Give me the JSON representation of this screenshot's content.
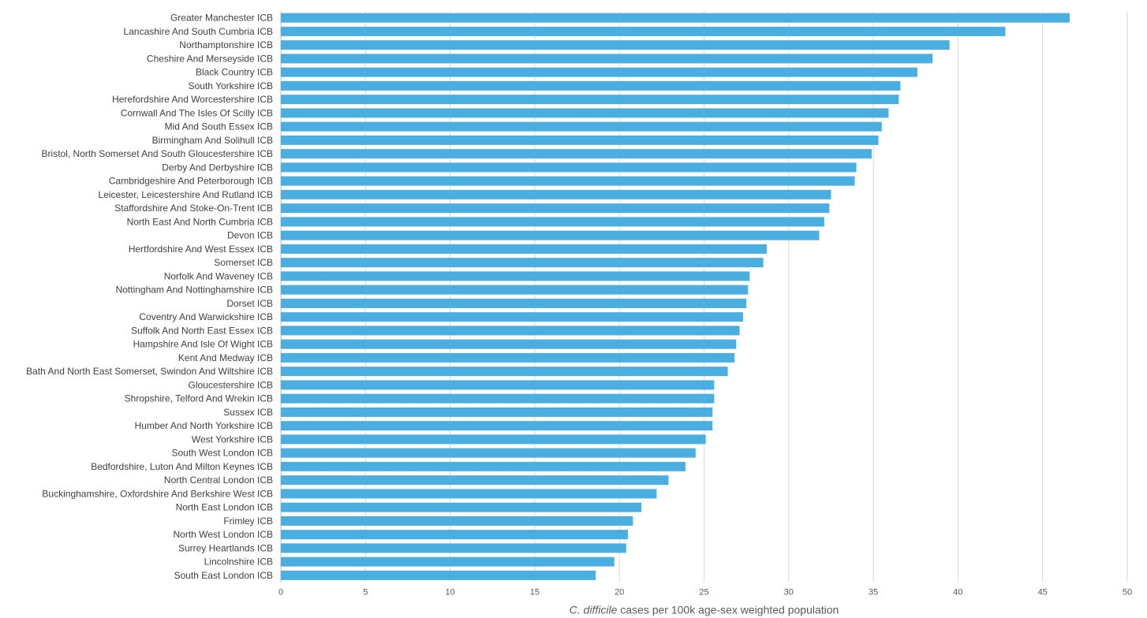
{
  "chart_data": {
    "type": "bar",
    "orientation": "horizontal",
    "title": "",
    "xlabel_italic": "C. difficile",
    "xlabel_rest": " cases per 100k age-sex weighted population",
    "ylabel": "",
    "xlim": [
      0,
      50
    ],
    "xticks": [
      0,
      5,
      10,
      15,
      20,
      25,
      30,
      35,
      40,
      45,
      50
    ],
    "grid": true,
    "legend": "none",
    "bar_color": "#4baee0",
    "categories": [
      "Greater Manchester ICB",
      "Lancashire And South Cumbria ICB",
      "Northamptonshire ICB",
      "Cheshire And Merseyside ICB",
      "Black Country ICB",
      "South Yorkshire ICB",
      "Herefordshire And Worcestershire ICB",
      "Cornwall And The Isles Of Scilly ICB",
      "Mid And South Essex ICB",
      "Birmingham And Solihull ICB",
      "Bristol, North Somerset And South Gloucestershire ICB",
      "Derby And Derbyshire ICB",
      "Cambridgeshire And Peterborough ICB",
      "Leicester, Leicestershire And Rutland ICB",
      "Staffordshire And Stoke-On-Trent ICB",
      "North East And North Cumbria ICB",
      "Devon ICB",
      "Hertfordshire And West Essex ICB",
      "Somerset ICB",
      "Norfolk And Waveney ICB",
      "Nottingham And Nottinghamshire ICB",
      "Dorset ICB",
      "Coventry And Warwickshire ICB",
      "Suffolk And North East Essex ICB",
      "Hampshire And Isle Of Wight ICB",
      "Kent And Medway ICB",
      "Bath And North East Somerset, Swindon And Wiltshire ICB",
      "Gloucestershire ICB",
      "Shropshire, Telford And Wrekin ICB",
      "Sussex ICB",
      "Humber And North Yorkshire ICB",
      "West Yorkshire ICB",
      "South West London ICB",
      "Bedfordshire, Luton And Milton Keynes ICB",
      "North Central London ICB",
      "Buckinghamshire, Oxfordshire And Berkshire West ICB",
      "North East London ICB",
      "Frimley ICB",
      "North West London ICB",
      "Surrey Heartlands ICB",
      "Lincolnshire ICB",
      "South East London ICB"
    ],
    "values": [
      46.6,
      42.8,
      39.5,
      38.5,
      37.6,
      36.6,
      36.5,
      35.9,
      35.5,
      35.3,
      34.9,
      34.0,
      33.9,
      32.5,
      32.4,
      32.1,
      31.8,
      28.7,
      28.5,
      27.7,
      27.6,
      27.5,
      27.3,
      27.1,
      26.9,
      26.8,
      26.4,
      25.6,
      25.6,
      25.5,
      25.5,
      25.1,
      24.5,
      23.9,
      22.9,
      22.2,
      21.3,
      20.8,
      20.5,
      20.4,
      19.7,
      18.6
    ]
  }
}
